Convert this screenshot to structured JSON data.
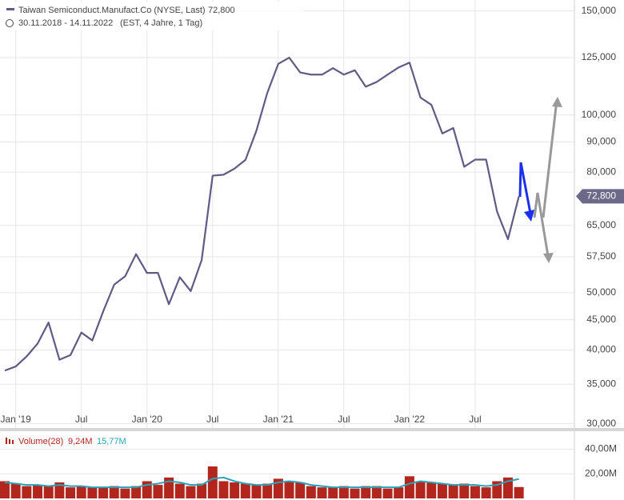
{
  "chart_data": [
    {
      "type": "line",
      "title": "Taiwan Semiconduct.Manufact.Co (NYSE, Last)",
      "last": {
        "value": 72800,
        "label": "72,800"
      },
      "subtitle": "30.11.2018 - 14.11.2022",
      "subtitle_note": "(EST, 4 Jahre, 1 Tag)",
      "log_scale": true,
      "grid": true,
      "x": [
        "2018-12",
        "2019-01",
        "2019-02",
        "2019-03",
        "2019-04",
        "2019-05",
        "2019-06",
        "2019-07",
        "2019-08",
        "2019-09",
        "2019-10",
        "2019-11",
        "2019-12",
        "2020-01",
        "2020-02",
        "2020-03",
        "2020-04",
        "2020-05",
        "2020-06",
        "2020-07",
        "2020-08",
        "2020-09",
        "2020-10",
        "2020-11",
        "2020-12",
        "2021-01",
        "2021-02",
        "2021-03",
        "2021-04",
        "2021-05",
        "2021-06",
        "2021-07",
        "2021-08",
        "2021-09",
        "2021-10",
        "2021-11",
        "2021-12",
        "2022-01",
        "2022-02",
        "2022-03",
        "2022-04",
        "2022-05",
        "2022-06",
        "2022-07",
        "2022-08",
        "2022-09",
        "2022-10",
        "2022-11"
      ],
      "series": [
        {
          "name": "Taiwan Semiconduct.Manufact.Co",
          "color": "#5f5b85",
          "values": [
            36900,
            37500,
            39000,
            41000,
            44500,
            38500,
            39200,
            42800,
            41500,
            46500,
            51600,
            53300,
            58100,
            54000,
            54000,
            47800,
            53100,
            50300,
            56800,
            78900,
            79200,
            81100,
            83900,
            94000,
            109000,
            122000,
            125000,
            118000,
            117000,
            117000,
            120000,
            117000,
            119000,
            111600,
            113700,
            117000,
            120300,
            122600,
            107000,
            104000,
            93000,
            95000,
            81700,
            84000,
            84000,
            68600,
            61600,
            72800
          ]
        }
      ],
      "xlim": [
        "2018-12",
        "2023-04"
      ],
      "xticks": [
        {
          "value": "2019-01",
          "label": "Jan '19"
        },
        {
          "value": "2019-07",
          "label": "Jul"
        },
        {
          "value": "2020-01",
          "label": "Jan '20"
        },
        {
          "value": "2020-07",
          "label": "Jul"
        },
        {
          "value": "2021-01",
          "label": "Jan '21"
        },
        {
          "value": "2021-07",
          "label": "Jul"
        },
        {
          "value": "2022-01",
          "label": "Jan '22"
        },
        {
          "value": "2022-07",
          "label": "Jul"
        }
      ],
      "ylim": [
        29500,
        156500
      ],
      "yticks": [
        {
          "value": 30000,
          "label": "30,000"
        },
        {
          "value": 35000,
          "label": "35,000"
        },
        {
          "value": 40000,
          "label": "40,000"
        },
        {
          "value": 45000,
          "label": "45,000"
        },
        {
          "value": 50000,
          "label": "50,000"
        },
        {
          "value": 57500,
          "label": "57,500"
        },
        {
          "value": 65000,
          "label": "65,000"
        },
        {
          "value": 72800,
          "label": "72,800"
        },
        {
          "value": 80000,
          "label": "80,000"
        },
        {
          "value": 90000,
          "label": "90,000"
        },
        {
          "value": 100000,
          "label": "100,000"
        },
        {
          "value": 125000,
          "label": "125,000"
        },
        {
          "value": 150000,
          "label": "150,000"
        }
      ]
    },
    {
      "type": "bar",
      "title": "Volume(28)",
      "last": {
        "value": 9.24,
        "label": "9,24M"
      },
      "average": {
        "value": 15.77,
        "label": "15,77M"
      },
      "x": [
        "2018-12",
        "2019-01",
        "2019-02",
        "2019-03",
        "2019-04",
        "2019-05",
        "2019-06",
        "2019-07",
        "2019-08",
        "2019-09",
        "2019-10",
        "2019-11",
        "2019-12",
        "2020-01",
        "2020-02",
        "2020-03",
        "2020-04",
        "2020-05",
        "2020-06",
        "2020-07",
        "2020-08",
        "2020-09",
        "2020-10",
        "2020-11",
        "2020-12",
        "2021-01",
        "2021-02",
        "2021-03",
        "2021-04",
        "2021-05",
        "2021-06",
        "2021-07",
        "2021-08",
        "2021-09",
        "2021-10",
        "2021-11",
        "2021-12",
        "2022-01",
        "2022-02",
        "2022-03",
        "2022-04",
        "2022-05",
        "2022-06",
        "2022-07",
        "2022-08",
        "2022-09",
        "2022-10",
        "2022-11"
      ],
      "series": [
        {
          "name": "Volume",
          "color": "#b3261e",
          "values": [
            14,
            12,
            10,
            11,
            10,
            13,
            9,
            10,
            9,
            9,
            10,
            8,
            10,
            14,
            11,
            17,
            12,
            10,
            12,
            26,
            14,
            13,
            12,
            11,
            12,
            16,
            14,
            13,
            10,
            9,
            9,
            10,
            8,
            10,
            10,
            8,
            9,
            18,
            14,
            13,
            12,
            11,
            12,
            10,
            9,
            14,
            17,
            9.24
          ]
        },
        {
          "name": "Average",
          "color": "#2aa3b8",
          "values": [
            13,
            12,
            11,
            11,
            10,
            11,
            10,
            10,
            9,
            9,
            9,
            9,
            9,
            11,
            12,
            14,
            13,
            11,
            11,
            16,
            17,
            14,
            12,
            11,
            11,
            13,
            14,
            13,
            11,
            10,
            9,
            9,
            9,
            9,
            9,
            9,
            9,
            12,
            14,
            13,
            12,
            11,
            11,
            11,
            10,
            11,
            14,
            15.77
          ]
        }
      ],
      "xlim": [
        "2018-12",
        "2023-04"
      ],
      "ylim": [
        0,
        54
      ],
      "yticks": [
        {
          "value": 20,
          "label": "20,00M"
        },
        {
          "value": 40,
          "label": "40,00M"
        }
      ]
    }
  ]
}
